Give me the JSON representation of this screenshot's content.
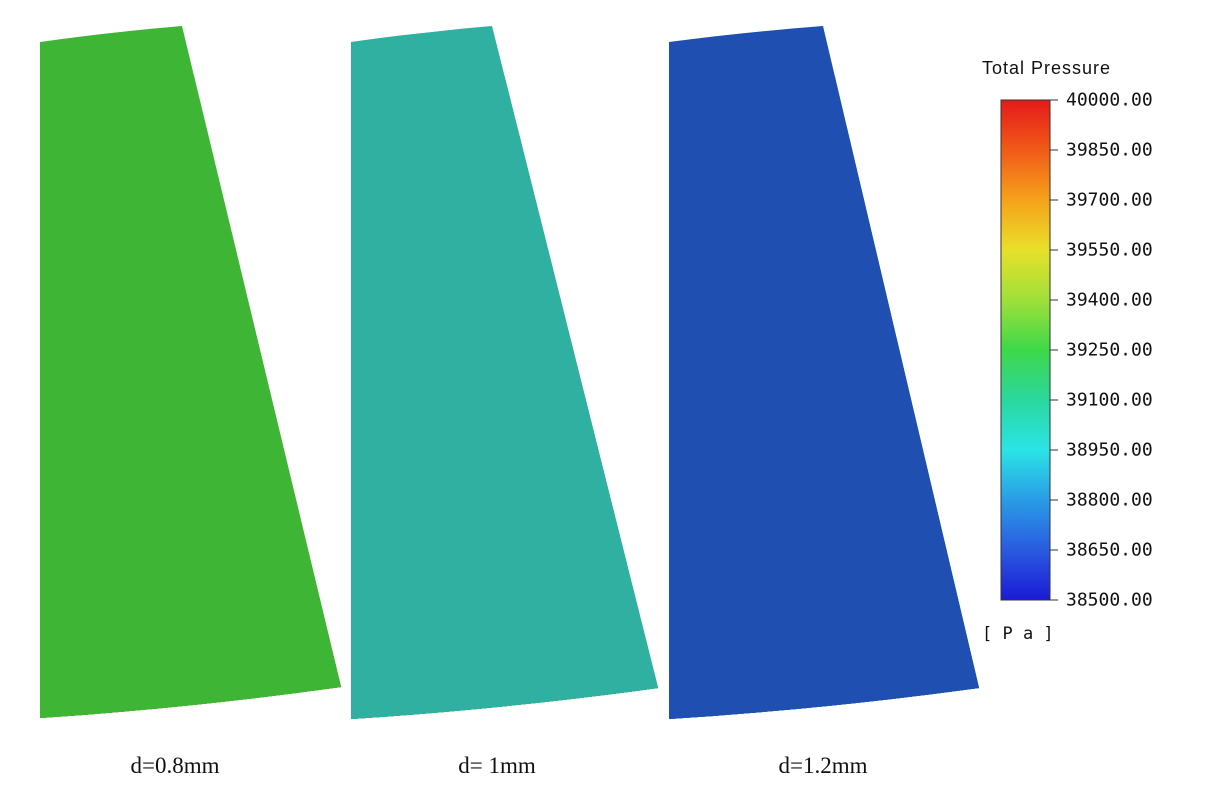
{
  "panels": [
    {
      "caption": "d=0.8mm",
      "band_colors": [
        "#3fb536",
        "#49b534",
        "#56b733",
        "#6cb731",
        "#88b52f",
        "#a7b02c",
        "#b8a52a",
        "#c28e27",
        "#c57824",
        "#c26021",
        "#b9461c",
        "#a91e1a",
        "#9b0d18"
      ]
    },
    {
      "caption": "d= 1mm",
      "band_colors": [
        "#2fb0a0",
        "#2fb48a",
        "#2db86c",
        "#2cb84a",
        "#33b83a",
        "#46b636",
        "#66b633",
        "#8cb32f",
        "#afae2c",
        "#c48f26",
        "#c06a22",
        "#a91e1a",
        "#9b0d18"
      ]
    },
    {
      "caption": "d=1.2mm",
      "band_colors": [
        "#1f4fb0",
        "#2466b8",
        "#2a85bf",
        "#2fa2c2",
        "#31aeb0",
        "#2fb397",
        "#2db677",
        "#2cb656",
        "#44b637",
        "#80b430",
        "#b8a52a",
        "#c24a20",
        "#9b0d18"
      ]
    }
  ],
  "legend": {
    "title": "Total Pressure",
    "unit": "[ P a ]",
    "ticks": [
      "40000.00",
      "39850.00",
      "39700.00",
      "39550.00",
      "39400.00",
      "39250.00",
      "39100.00",
      "38950.00",
      "38800.00",
      "38650.00",
      "38500.00"
    ],
    "gradient_colors": [
      "#e41a1a",
      "#f05a18",
      "#f5a21a",
      "#e8e02a",
      "#9fe03a",
      "#3ed84a",
      "#2ad89e",
      "#2ae4e6",
      "#2a9ce6",
      "#2a5ae0",
      "#1a1ad6"
    ]
  }
}
